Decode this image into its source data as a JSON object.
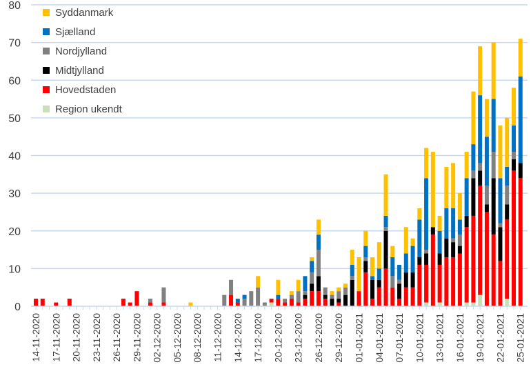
{
  "chart_data": {
    "type": "bar",
    "stacked": true,
    "title": "",
    "xlabel": "",
    "ylabel": "",
    "ylim": [
      0,
      80
    ],
    "yticks": [
      0,
      10,
      20,
      30,
      40,
      50,
      60,
      70,
      80
    ],
    "grid": true,
    "legend_position": "top-left",
    "x_start": "14-11-2020",
    "x_end": "25-01-2021",
    "tick_labels": [
      "14-11-2020",
      "17-11-2020",
      "20-11-2020",
      "23-11-2020",
      "26-11-2020",
      "29-11-2020",
      "02-12-2020",
      "05-12-2020",
      "08-12-2020",
      "11-12-2020",
      "14-12-2020",
      "17-12-2020",
      "20-12-2020",
      "23-12-2020",
      "26-12-2020",
      "29-12-2020",
      "01-01-2021",
      "04-01-2021",
      "07-01-2021",
      "10-01-2021",
      "13-01-2021",
      "16-01-2021",
      "19-01-2021",
      "22-01-2021",
      "25-01-2021"
    ],
    "legend_order": [
      "Syddanmark",
      "Sjælland",
      "Nordjylland",
      "Midtjylland",
      "Hovedstaden",
      "Region ukendt"
    ],
    "series": [
      {
        "name": "Region ukendt",
        "color": "#c9dfb8",
        "values": [
          0,
          0,
          0,
          0,
          0,
          0,
          0,
          0,
          0,
          0,
          0,
          0,
          0,
          0,
          0,
          0,
          0,
          0,
          0,
          0,
          0,
          0,
          0,
          0,
          0,
          0,
          0,
          0,
          0,
          0,
          0,
          0,
          0,
          0,
          0,
          1,
          0,
          0,
          0,
          0,
          0,
          0,
          0,
          0,
          0,
          0,
          0,
          0,
          0,
          0,
          0,
          0,
          0,
          0,
          0,
          0,
          0,
          0,
          1,
          0,
          1,
          0,
          0,
          0,
          1,
          1,
          3,
          0,
          0,
          0,
          2,
          0,
          0
        ]
      },
      {
        "name": "Hovedstaden",
        "color": "#ff0000",
        "values": [
          2,
          2,
          0,
          1,
          0,
          2,
          0,
          0,
          0,
          0,
          0,
          0,
          0,
          2,
          1,
          4,
          0,
          1,
          0,
          1,
          0,
          0,
          0,
          0,
          0,
          0,
          0,
          0,
          0,
          3,
          1,
          0,
          0,
          0,
          0,
          1,
          2,
          1,
          2,
          1,
          2,
          4,
          4,
          2,
          0,
          1,
          0,
          0,
          4,
          9,
          2,
          5,
          10,
          5,
          2,
          5,
          5,
          11,
          10,
          19,
          10,
          13,
          13,
          14,
          20,
          23,
          29,
          25,
          19,
          12,
          21,
          36,
          34
        ]
      },
      {
        "name": "Midtjylland",
        "color": "#000000",
        "values": [
          0,
          0,
          0,
          0,
          0,
          0,
          0,
          0,
          0,
          0,
          0,
          0,
          0,
          0,
          0,
          0,
          0,
          0,
          0,
          0,
          0,
          0,
          0,
          0,
          0,
          0,
          0,
          0,
          0,
          0,
          0,
          0,
          0,
          0,
          0,
          0,
          0,
          0,
          0,
          0,
          1,
          2,
          4,
          1,
          2,
          1,
          3,
          7,
          0,
          3,
          5,
          2,
          10,
          0,
          4,
          4,
          4,
          2,
          3,
          2,
          3,
          5,
          4,
          2,
          3,
          10,
          4,
          2,
          15,
          9,
          4,
          3,
          4
        ]
      },
      {
        "name": "Nordjylland",
        "color": "#808080",
        "values": [
          0,
          0,
          0,
          0,
          0,
          0,
          0,
          0,
          0,
          0,
          0,
          0,
          0,
          0,
          0,
          0,
          0,
          1,
          0,
          4,
          0,
          0,
          0,
          0,
          0,
          0,
          0,
          0,
          3,
          4,
          0,
          2,
          4,
          5,
          1,
          0,
          0,
          1,
          1,
          3,
          1,
          3,
          7,
          2,
          1,
          2,
          2,
          1,
          0,
          1,
          0,
          0,
          1,
          3,
          1,
          0,
          0,
          0,
          1,
          0,
          0,
          0,
          1,
          3,
          0,
          2,
          2,
          5,
          7,
          1,
          5,
          2,
          0
        ]
      },
      {
        "name": "Sjælland",
        "color": "#0070c0",
        "values": [
          0,
          0,
          0,
          0,
          0,
          0,
          0,
          0,
          0,
          0,
          0,
          0,
          0,
          0,
          0,
          0,
          0,
          0,
          0,
          0,
          0,
          0,
          0,
          0,
          0,
          0,
          0,
          0,
          0,
          0,
          1,
          1,
          0,
          0,
          0,
          0,
          1,
          0,
          0,
          0,
          4,
          3,
          4,
          0,
          0,
          0,
          0,
          3,
          0,
          3,
          1,
          3,
          3,
          5,
          4,
          5,
          7,
          10,
          19,
          0,
          6,
          8,
          8,
          4,
          10,
          7,
          18,
          13,
          14,
          12,
          5,
          7,
          23
        ]
      },
      {
        "name": "Syddanmark",
        "color": "#ffc000",
        "values": [
          0,
          0,
          0,
          0,
          0,
          0,
          0,
          0,
          0,
          0,
          0,
          0,
          0,
          0,
          0,
          0,
          0,
          0,
          0,
          0,
          0,
          0,
          0,
          1,
          0,
          0,
          0,
          0,
          0,
          0,
          0,
          0,
          0,
          3,
          0,
          0,
          4,
          0,
          1,
          3,
          0,
          1,
          4,
          0,
          1,
          1,
          1,
          4,
          9,
          4,
          5,
          7,
          11,
          3,
          0,
          7,
          2,
          3,
          8,
          20,
          4,
          11,
          12,
          7,
          7,
          14,
          13,
          10,
          15,
          14,
          13,
          10,
          10
        ]
      }
    ]
  }
}
